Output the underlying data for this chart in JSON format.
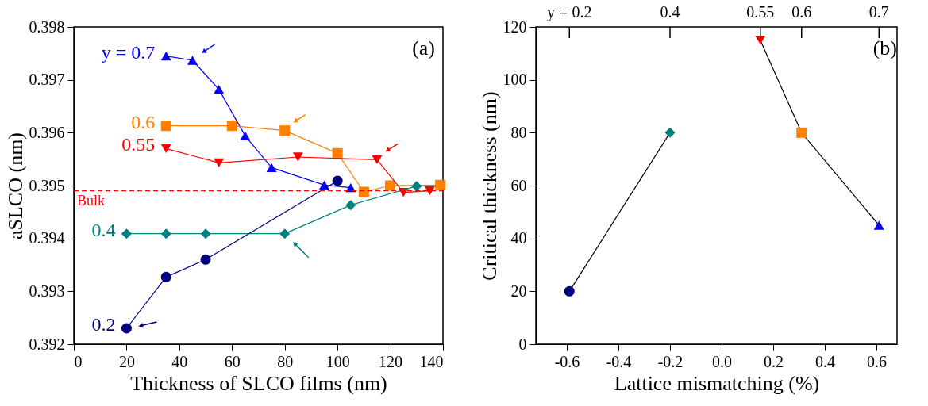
{
  "chart_data": [
    {
      "type": "line",
      "xlabel": "Thickness of SLCO films (nm)",
      "ylabel": "aSLCO (nm)",
      "xlim": [
        0,
        140
      ],
      "xticks": [
        0,
        20,
        40,
        60,
        80,
        100,
        120,
        140
      ],
      "ylim": [
        0.392,
        0.398
      ],
      "yticks": [
        0.392,
        0.393,
        0.394,
        0.395,
        0.396,
        0.397,
        0.398
      ],
      "grid": false,
      "series": [
        {
          "name": "y = 0.7",
          "color": "#0000ff",
          "marker": "triangle",
          "x": [
            35,
            45,
            55,
            65,
            75,
            95,
            105
          ],
          "values": [
            0.39745,
            0.39737,
            0.39682,
            0.39594,
            0.39534,
            0.39501,
            0.39496
          ]
        },
        {
          "name": "0.6",
          "color": "#ff8000",
          "marker": "square",
          "x": [
            35,
            60,
            80,
            100,
            110,
            120,
            139
          ],
          "values": [
            0.39613,
            0.39613,
            0.39604,
            0.39561,
            0.39488,
            0.395,
            0.39501
          ]
        },
        {
          "name": "0.55",
          "color": "#ff0000",
          "marker": "triangle-down",
          "x": [
            35,
            55,
            85,
            115,
            125,
            135
          ],
          "values": [
            0.3957,
            0.39543,
            0.39554,
            0.39549,
            0.39487,
            0.3949
          ]
        },
        {
          "name": "0.4",
          "color": "#008080",
          "marker": "diamond",
          "x": [
            20,
            35,
            50,
            80,
            105,
            130
          ],
          "values": [
            0.39409,
            0.39409,
            0.39409,
            0.39409,
            0.39463,
            0.39499
          ]
        },
        {
          "name": "0.2",
          "color": "#000080",
          "marker": "circle",
          "x": [
            20,
            35,
            50,
            100
          ],
          "values": [
            0.3923,
            0.39327,
            0.3936,
            0.39509
          ]
        }
      ],
      "ref_lines": [
        {
          "axis": "y",
          "value": 0.3949,
          "label": "Bulk",
          "color": "#ff0000",
          "line_style": "dashed"
        }
      ],
      "annotations": [
        "(a)"
      ]
    },
    {
      "type": "scatter",
      "xlabel": "Lattice mismatching (%)",
      "ylabel": "Critical thickness (nm)",
      "xlim": [
        -0.72,
        0.68
      ],
      "xticks": [
        -0.6,
        -0.4,
        -0.2,
        {
          "value": 0,
          "label": "0.0"
        },
        0.2,
        0.4,
        0.6
      ],
      "ylim": [
        0,
        120
      ],
      "yticks": [
        0,
        20,
        40,
        60,
        80,
        100,
        120
      ],
      "grid": false,
      "series": [
        {
          "type": "line",
          "color": "#000000",
          "marker": "none",
          "x": [
            -0.59,
            -0.2
          ],
          "values": [
            20,
            80
          ]
        },
        {
          "type": "line",
          "color": "#000000",
          "marker": "none",
          "x": [
            0.15,
            0.31,
            0.61
          ],
          "values": [
            115,
            80,
            45
          ]
        },
        {
          "color": "#000080",
          "marker": "circle",
          "x": [
            -0.59
          ],
          "values": [
            20
          ]
        },
        {
          "color": "#008080",
          "marker": "diamond",
          "x": [
            -0.2
          ],
          "values": [
            80
          ]
        },
        {
          "color": "#ff0000",
          "marker": "triangle-down",
          "x": [
            0.15
          ],
          "values": [
            115
          ]
        },
        {
          "color": "#ff8000",
          "marker": "square",
          "x": [
            0.31
          ],
          "values": [
            80
          ]
        },
        {
          "color": "#0000ff",
          "marker": "triangle",
          "x": [
            0.61
          ],
          "values": [
            45
          ]
        }
      ],
      "annotations": [
        "(b)",
        {
          "text": "y = 0.2",
          "x": -0.59
        },
        {
          "text": "0.4",
          "x": -0.2
        },
        {
          "text": "0.55",
          "x": 0.15
        },
        {
          "text": "0.6",
          "x": 0.31
        },
        {
          "text": "0.7",
          "x": 0.61
        }
      ]
    }
  ]
}
